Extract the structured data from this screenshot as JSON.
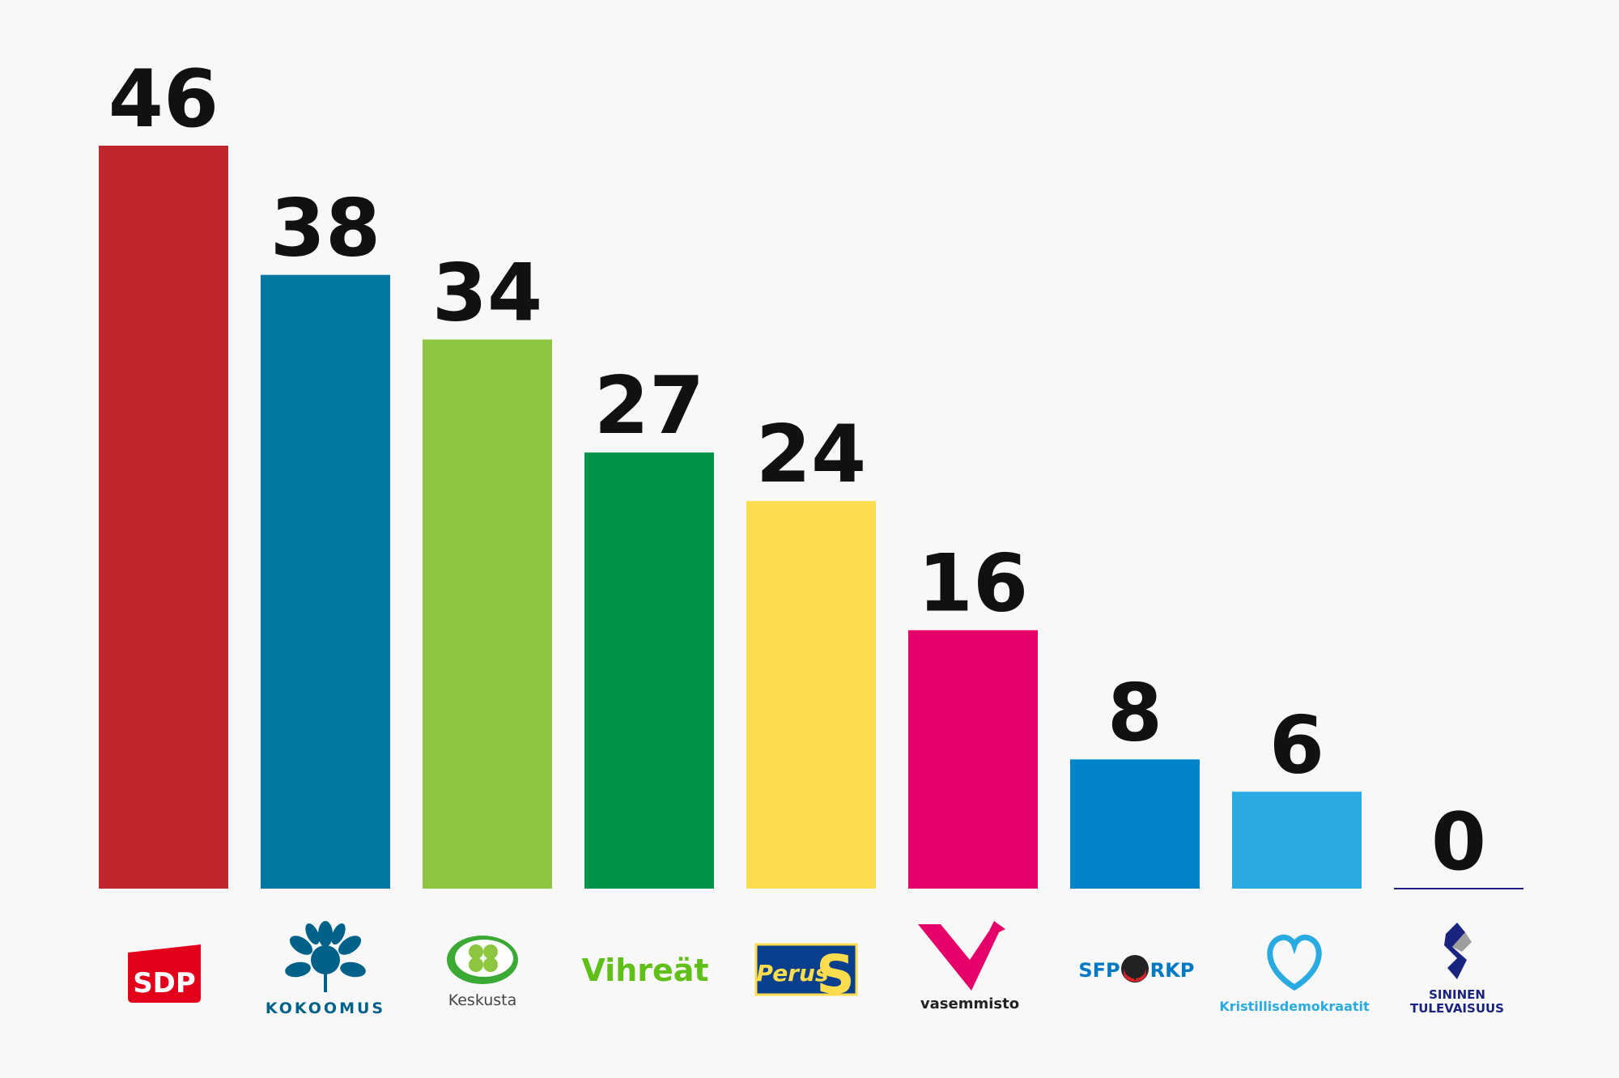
{
  "chart_data": {
    "type": "bar",
    "categories": [
      "SDP",
      "KOKOOMUS",
      "Keskusta",
      "Vihreät",
      "PerusS",
      "vasemmisto",
      "SFP RKP",
      "Kristillisdemokraatit",
      "SININEN TULEVAISUUS"
    ],
    "values": [
      46,
      38,
      34,
      27,
      24,
      16,
      8,
      6,
      0
    ],
    "colors": [
      "#c0272d",
      "#00779e",
      "#8dc63f",
      "#00944a",
      "#fddd4e",
      "#e5006a",
      "#0083c8",
      "#29abe2",
      "#1a237e"
    ],
    "ylim": [
      0,
      46
    ],
    "grid": false,
    "legend": "none"
  },
  "logos": {
    "sdp": {
      "text": "SDP",
      "icon": "sdp-rose-badge-icon",
      "color": "#e2001a"
    },
    "kokoomus": {
      "text": "KOKOOMUS",
      "icon": "cornflower-icon",
      "color": "#006288"
    },
    "keskusta": {
      "text": "Keskusta",
      "icon": "four-leaf-clover-icon",
      "color": "#3aaa35"
    },
    "vihreat": {
      "text": "Vihreät",
      "icon": "",
      "color": "#61bf1a"
    },
    "perus": {
      "text1": "Perus",
      "text2": "S",
      "icon": "perus-s-icon",
      "color": "#fddd4e",
      "bg": "#0a3f8d"
    },
    "vasemmisto": {
      "text": "vasemmisto",
      "icon": "v-bird-icon",
      "color": "#e5006a"
    },
    "rkp": {
      "text1": "SFP",
      "text2": "RKP",
      "icon": "ladybug-icon",
      "color": "#0079c2"
    },
    "kd": {
      "text": "Kristillisdemokraatit",
      "icon": "kd-heart-icon",
      "color": "#29abe2"
    },
    "sininen": {
      "text1": "SININEN",
      "text2": "TULEVAISUUS",
      "icon": "blue-s-icon",
      "color": "#1a237e"
    }
  }
}
